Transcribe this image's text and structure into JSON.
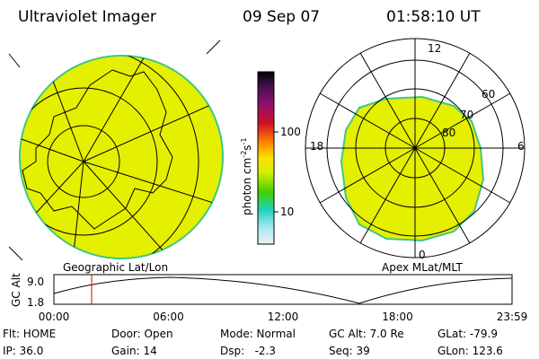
{
  "header": {
    "title": "Ultraviolet Imager",
    "date": "09 Sep 07",
    "time": "01:58:10 UT"
  },
  "colorbar": {
    "label_main": "photon cm",
    "exp1": "-2",
    "label_s": "s",
    "exp2": "-1",
    "ticks": [
      "100",
      "10"
    ]
  },
  "left_view": {
    "label": "Geographic Lat/Lon"
  },
  "right_view": {
    "label": "Apex MLat/MLT",
    "mlt": [
      "12",
      "6",
      "0",
      "18"
    ],
    "lat": [
      "60",
      "70",
      "80"
    ]
  },
  "alt_plot": {
    "ylabel": "GC Alt",
    "yticks": [
      "9.0",
      "1.8"
    ],
    "xticks": [
      "00:00",
      "06:00",
      "12:00",
      "18:00",
      "23:59"
    ]
  },
  "info": {
    "rows": [
      [
        "Flt: HOME",
        "Door: Open",
        "Mode: Normal",
        "GC Alt: 7.0 Re",
        "GLat: -79.9"
      ],
      [
        "IP: 36.0",
        "Gain: 14",
        "Dsp:   -2.3",
        "Seq: 39",
        "GLon: 123.6"
      ]
    ]
  }
}
